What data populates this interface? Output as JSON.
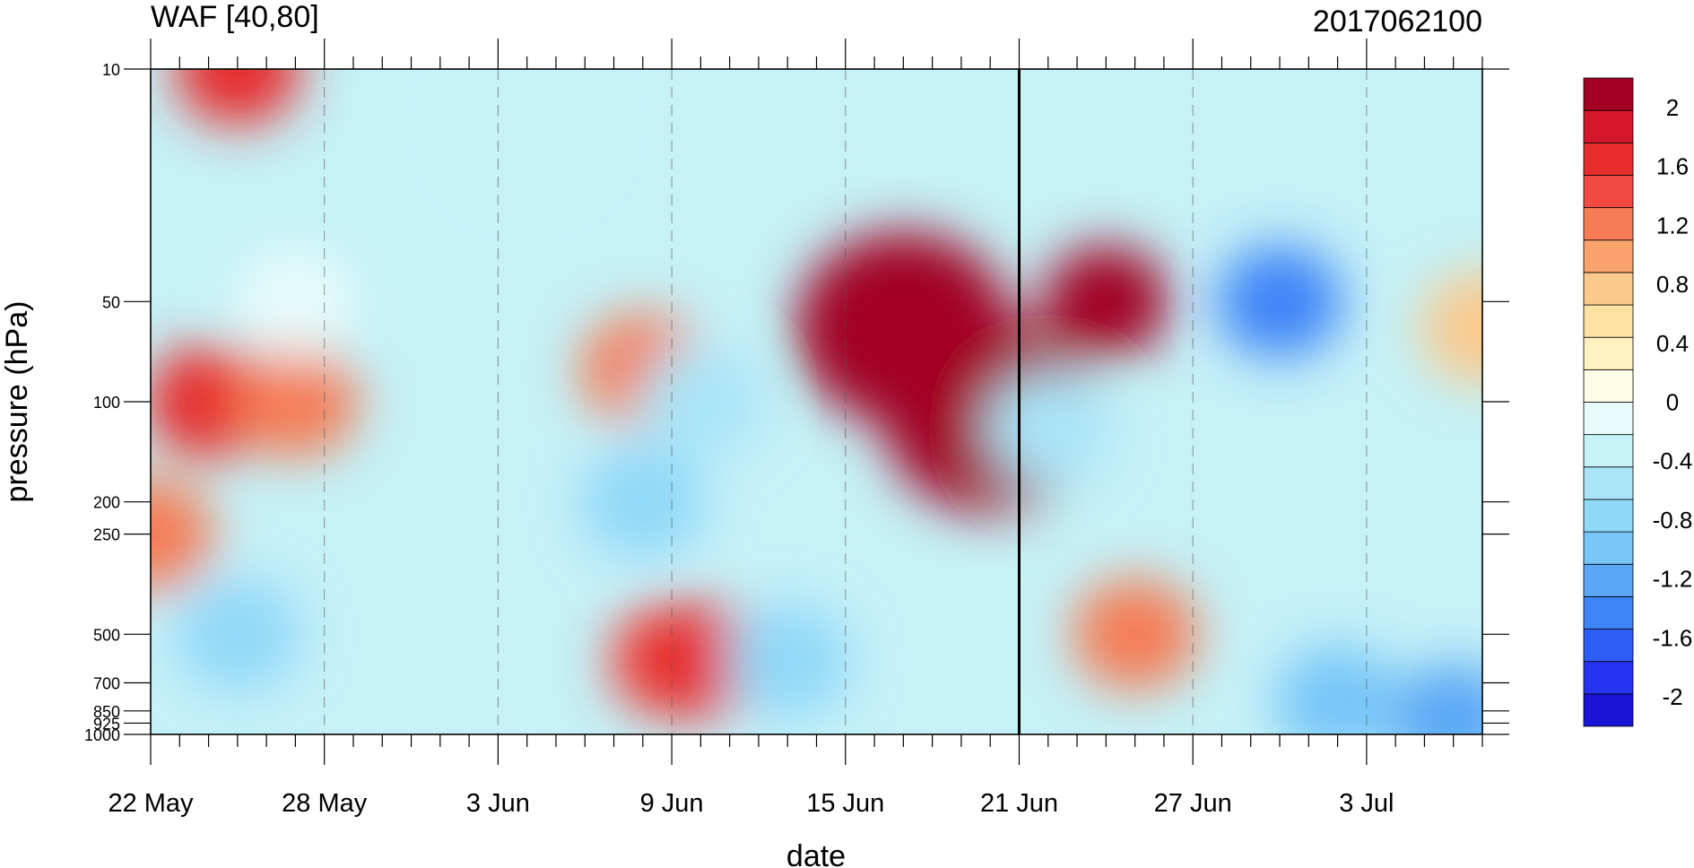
{
  "chart_data": {
    "type": "heatmap",
    "title": "WAF [40,80]",
    "subtitle": "2017062100",
    "xlabel": "date",
    "ylabel": "pressure (hPa)",
    "x_ticks": [
      "22 May",
      "28 May",
      "3 Jun",
      "9 Jun",
      "15 Jun",
      "21 Jun",
      "27 Jun",
      "3 Jul"
    ],
    "x_range": [
      "2017-05-22",
      "2017-07-07"
    ],
    "current_date": "2017-06-21",
    "y_scale": "log",
    "y_ticks": [
      "10",
      "50",
      "100",
      "200",
      "250",
      "500",
      "700",
      "850",
      "925",
      "1000"
    ],
    "y_tick_values": [
      10,
      50,
      100,
      200,
      250,
      500,
      700,
      850,
      925,
      1000
    ],
    "ylim": [
      1000,
      10
    ],
    "colorbar": {
      "labels": [
        "2",
        "1.6",
        "1.2",
        "0.8",
        "0.4",
        "0",
        "-0.4",
        "-0.8",
        "-1.2",
        "-1.6",
        "-2"
      ],
      "label_values": [
        2,
        1.6,
        1.2,
        0.8,
        0.4,
        0,
        -0.4,
        -0.8,
        -1.2,
        -1.6,
        -2
      ],
      "levels": [
        -2.2,
        -2.0,
        -1.8,
        -1.6,
        -1.4,
        -1.2,
        -1.0,
        -0.8,
        -0.6,
        -0.4,
        -0.2,
        0,
        0.2,
        0.4,
        0.6,
        0.8,
        1.0,
        1.2,
        1.4,
        1.6,
        1.8,
        2.0,
        2.2
      ],
      "colors": [
        "#1a14d6",
        "#2633f0",
        "#2e5cf7",
        "#3d84f7",
        "#5aa8f5",
        "#76c6f8",
        "#90d8f8",
        "#a9e5f7",
        "#c5f1f7",
        "#e6fbfa",
        "#fffde8",
        "#fff0c0",
        "#fde2a4",
        "#fbc98c",
        "#f9a26e",
        "#f57c55",
        "#f24a42",
        "#e72c2c",
        "#d4172b",
        "#a20022"
      ]
    },
    "features": [
      {
        "date": "2017-05-24",
        "p": 100,
        "value": 1.3
      },
      {
        "date": "2017-05-25",
        "p": 10,
        "value": 1.2
      },
      {
        "date": "2017-05-22",
        "p": 250,
        "value": 0.9
      },
      {
        "date": "2017-05-27",
        "p": 100,
        "value": 0.8
      },
      {
        "date": "2017-05-27",
        "p": 50,
        "value": -0.4
      },
      {
        "date": "2017-06-04",
        "p": 15,
        "value": -0.5
      },
      {
        "date": "2017-06-08",
        "p": 80,
        "value": 0.9
      },
      {
        "date": "2017-06-10",
        "p": 100,
        "value": -0.8
      },
      {
        "date": "2017-06-09",
        "p": 600,
        "value": 1.0
      },
      {
        "date": "2017-06-10",
        "p": 600,
        "value": 1.3
      },
      {
        "date": "2017-06-08",
        "p": 200,
        "value": -0.9
      },
      {
        "date": "2017-06-17",
        "p": 60,
        "value": 2.2
      },
      {
        "date": "2017-06-20",
        "p": 110,
        "value": 2.1
      },
      {
        "date": "2017-06-24",
        "p": 50,
        "value": 1.7
      },
      {
        "date": "2017-06-25",
        "p": 500,
        "value": 0.8
      },
      {
        "date": "2017-06-30",
        "p": 50,
        "value": -1.6
      },
      {
        "date": "2017-07-06",
        "p": 900,
        "value": -1.4
      },
      {
        "date": "2017-07-02",
        "p": 800,
        "value": -1.2
      },
      {
        "date": "2017-06-22",
        "p": 120,
        "value": -0.8
      },
      {
        "date": "2017-06-13",
        "p": 600,
        "value": -1.0
      },
      {
        "date": "2017-05-25",
        "p": 500,
        "value": -1.0
      },
      {
        "date": "2017-07-07",
        "p": 60,
        "value": 0.4
      }
    ]
  }
}
